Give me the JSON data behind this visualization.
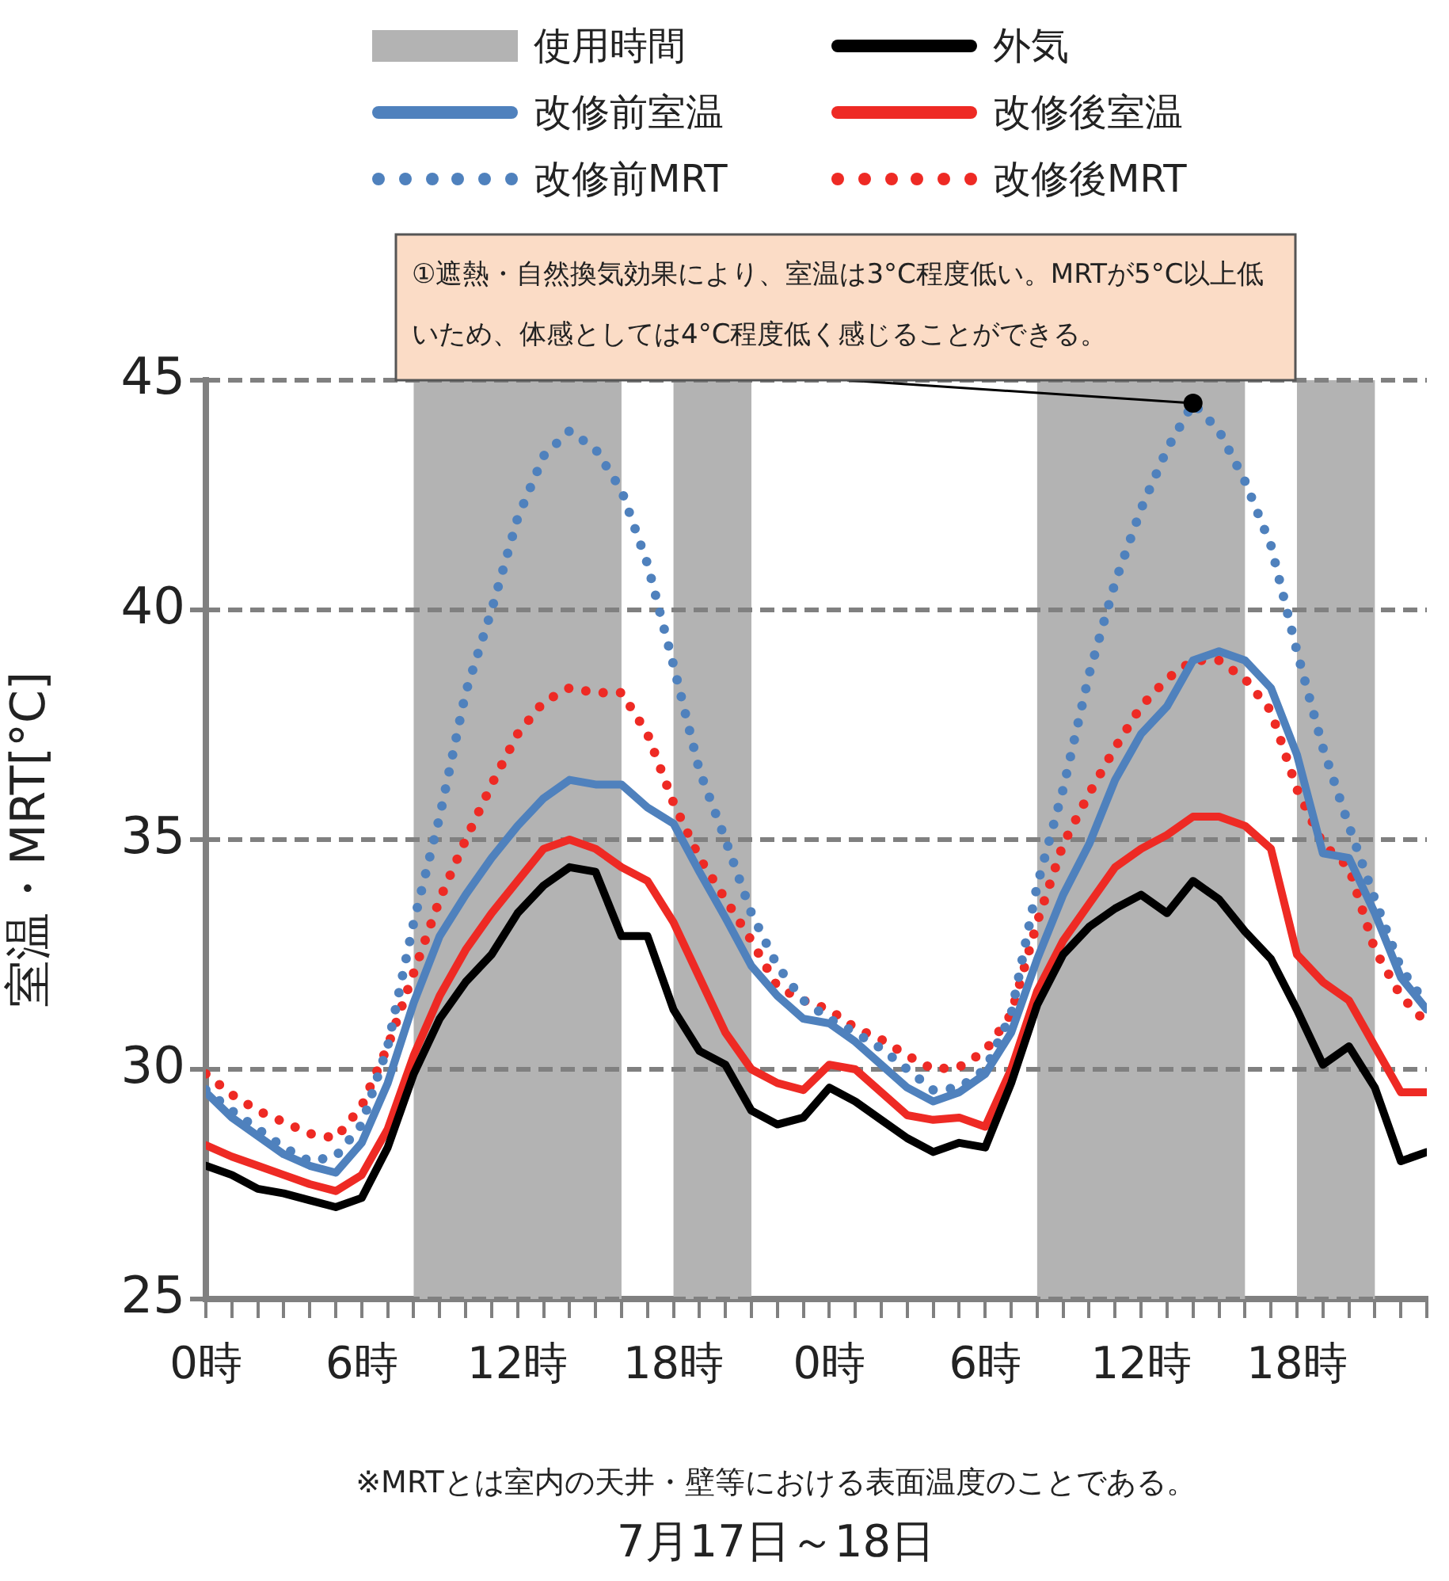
{
  "chart_data": {
    "type": "line",
    "xlabel": "7月17日～18日",
    "ylabel": "室温・MRT[°C]",
    "xlim": [
      "--07-17T00:00",
      "--07-18T23:00"
    ],
    "ylim": [
      25,
      45
    ],
    "yticks": [
      25,
      30,
      35,
      40,
      45
    ],
    "xticks": [
      {
        "value": "--07-17T00:00",
        "label": "0時"
      },
      {
        "value": "--07-17T01:00",
        "label": null
      },
      {
        "value": "--07-17T02:00",
        "label": null
      },
      {
        "value": "--07-17T03:00",
        "label": null
      },
      {
        "value": "--07-17T04:00",
        "label": null
      },
      {
        "value": "--07-17T05:00",
        "label": null
      },
      {
        "value": "--07-17T06:00",
        "label": "6時"
      },
      {
        "value": "--07-17T07:00",
        "label": null
      },
      {
        "value": "--07-17T08:00",
        "label": null
      },
      {
        "value": "--07-17T09:00",
        "label": null
      },
      {
        "value": "--07-17T10:00",
        "label": null
      },
      {
        "value": "--07-17T11:00",
        "label": null
      },
      {
        "value": "--07-17T12:00",
        "label": "12時"
      },
      {
        "value": "--07-17T13:00",
        "label": null
      },
      {
        "value": "--07-17T14:00",
        "label": null
      },
      {
        "value": "--07-17T15:00",
        "label": null
      },
      {
        "value": "--07-17T16:00",
        "label": null
      },
      {
        "value": "--07-17T17:00",
        "label": null
      },
      {
        "value": "--07-17T18:00",
        "label": "18時"
      },
      {
        "value": "--07-17T19:00",
        "label": null
      },
      {
        "value": "--07-17T20:00",
        "label": null
      },
      {
        "value": "--07-17T21:00",
        "label": null
      },
      {
        "value": "--07-17T22:00",
        "label": null
      },
      {
        "value": "--07-17T23:00",
        "label": null
      },
      {
        "value": "--07-18T00:00",
        "label": "0時"
      },
      {
        "value": "--07-18T01:00",
        "label": null
      },
      {
        "value": "--07-18T02:00",
        "label": null
      },
      {
        "value": "--07-18T03:00",
        "label": null
      },
      {
        "value": "--07-18T04:00",
        "label": null
      },
      {
        "value": "--07-18T05:00",
        "label": null
      },
      {
        "value": "--07-18T06:00",
        "label": "6時"
      },
      {
        "value": "--07-18T07:00",
        "label": null
      },
      {
        "value": "--07-18T08:00",
        "label": null
      },
      {
        "value": "--07-18T09:00",
        "label": null
      },
      {
        "value": "--07-18T10:00",
        "label": null
      },
      {
        "value": "--07-18T11:00",
        "label": null
      },
      {
        "value": "--07-18T12:00",
        "label": "12時"
      },
      {
        "value": "--07-18T13:00",
        "label": null
      },
      {
        "value": "--07-18T14:00",
        "label": null
      },
      {
        "value": "--07-18T15:00",
        "label": null
      },
      {
        "value": "--07-18T16:00",
        "label": null
      },
      {
        "value": "--07-18T17:00",
        "label": null
      },
      {
        "value": "--07-18T18:00",
        "label": "18時"
      },
      {
        "value": "--07-18T19:00",
        "label": null
      },
      {
        "value": "--07-18T20:00",
        "label": null
      },
      {
        "value": "--07-18T21:00",
        "label": null
      },
      {
        "value": "--07-18T22:00",
        "label": null
      },
      {
        "value": "--07-18T23:00",
        "label": null
      }
    ],
    "x": [
      "--07-17T00:00",
      "--07-17T01:00",
      "--07-17T02:00",
      "--07-17T03:00",
      "--07-17T04:00",
      "--07-17T05:00",
      "--07-17T06:00",
      "--07-17T07:00",
      "--07-17T08:00",
      "--07-17T09:00",
      "--07-17T10:00",
      "--07-17T11:00",
      "--07-17T12:00",
      "--07-17T13:00",
      "--07-17T14:00",
      "--07-17T15:00",
      "--07-17T16:00",
      "--07-17T17:00",
      "--07-17T18:00",
      "--07-17T19:00",
      "--07-17T20:00",
      "--07-17T21:00",
      "--07-17T22:00",
      "--07-17T23:00",
      "--07-18T00:00",
      "--07-18T01:00",
      "--07-18T02:00",
      "--07-18T03:00",
      "--07-18T04:00",
      "--07-18T05:00",
      "--07-18T06:00",
      "--07-18T07:00",
      "--07-18T08:00",
      "--07-18T09:00",
      "--07-18T10:00",
      "--07-18T11:00",
      "--07-18T12:00",
      "--07-18T13:00",
      "--07-18T14:00",
      "--07-18T15:00",
      "--07-18T16:00",
      "--07-18T17:00",
      "--07-18T18:00",
      "--07-18T19:00",
      "--07-18T20:00",
      "--07-18T21:00",
      "--07-18T22:00",
      "--07-18T23:00"
    ],
    "grid": "y",
    "legend": "top",
    "line_style": "solid",
    "bands": [
      {
        "axis": "x",
        "from": "--07-17T08:00",
        "to": "--07-17T16:00",
        "label": "使用時間",
        "color": "#b3b3b3"
      },
      {
        "axis": "x",
        "from": "--07-17T18:00",
        "to": "--07-17T21:00",
        "color": "#b3b3b3"
      },
      {
        "axis": "x",
        "from": "--07-18T08:00",
        "to": "--07-18T16:00",
        "color": "#b3b3b3"
      },
      {
        "axis": "x",
        "from": "--07-18T18:00",
        "to": "--07-18T21:00",
        "color": "#b3b3b3"
      }
    ],
    "series": [
      {
        "name": "改修前室温",
        "color": "#4f81bd",
        "values": [
          29.5,
          28.95,
          28.55,
          28.15,
          27.9,
          27.75,
          28.4,
          29.7,
          31.45,
          32.9,
          33.8,
          34.6,
          35.3,
          35.9,
          36.3,
          36.2,
          36.2,
          35.7,
          35.35,
          34.3,
          33.3,
          32.25,
          31.6,
          31.1,
          31.0,
          30.6,
          30.1,
          29.6,
          29.3,
          29.5,
          29.9,
          30.8,
          32.4,
          33.8,
          34.9,
          36.3,
          37.3,
          37.9,
          38.9,
          39.1,
          38.9,
          38.3,
          36.85,
          34.7,
          34.6,
          33.4,
          32.0,
          31.3
        ]
      },
      {
        "name": "改修前MRT",
        "color": "#4f81bd",
        "line_style": "dotted",
        "values": [
          29.55,
          29.1,
          28.7,
          28.3,
          28.0,
          28.1,
          28.8,
          30.5,
          33.2,
          35.5,
          38.2,
          40.0,
          42.0,
          43.35,
          43.9,
          43.5,
          42.6,
          41.0,
          38.8,
          36.5,
          35.0,
          33.4,
          32.25,
          31.5,
          31.1,
          30.8,
          30.45,
          30.0,
          29.55,
          29.6,
          30.0,
          31.2,
          34.0,
          36.1,
          38.6,
          40.6,
          42.2,
          43.5,
          44.5,
          43.9,
          42.8,
          41.4,
          39.1,
          37.0,
          35.3,
          33.7,
          32.2,
          31.4
        ]
      },
      {
        "name": "外気",
        "color": "#000000",
        "values": [
          27.9,
          27.7,
          27.4,
          27.3,
          27.15,
          27.0,
          27.2,
          28.3,
          29.9,
          31.1,
          31.9,
          32.5,
          33.4,
          34.0,
          34.4,
          34.3,
          32.9,
          32.9,
          31.3,
          30.4,
          30.1,
          29.1,
          28.8,
          28.95,
          29.6,
          29.3,
          28.9,
          28.5,
          28.2,
          28.4,
          28.3,
          29.7,
          31.4,
          32.5,
          33.1,
          33.5,
          33.8,
          33.4,
          34.1,
          33.7,
          33.0,
          32.4,
          31.3,
          30.1,
          30.5,
          29.6,
          28.0,
          28.2
        ]
      },
      {
        "name": "改修後室温",
        "color": "#ee2a24",
        "values": [
          28.35,
          28.1,
          27.9,
          27.7,
          27.5,
          27.35,
          27.7,
          28.7,
          30.3,
          31.6,
          32.6,
          33.4,
          34.1,
          34.8,
          35.0,
          34.8,
          34.4,
          34.1,
          33.2,
          32.0,
          30.8,
          30.0,
          29.7,
          29.55,
          30.1,
          30.0,
          29.5,
          29.0,
          28.9,
          28.95,
          28.75,
          30.0,
          31.7,
          32.8,
          33.6,
          34.4,
          34.8,
          35.1,
          35.5,
          35.5,
          35.3,
          34.8,
          32.5,
          31.9,
          31.5,
          30.5,
          29.5,
          29.5
        ]
      },
      {
        "name": "改修後MRT",
        "color": "#ee2a24",
        "line_style": "dotted",
        "values": [
          29.9,
          29.45,
          29.1,
          28.85,
          28.6,
          28.5,
          29.2,
          30.5,
          32.1,
          33.7,
          35.0,
          36.2,
          37.3,
          38.0,
          38.3,
          38.2,
          38.2,
          37.3,
          35.8,
          34.6,
          33.7,
          32.8,
          31.8,
          31.5,
          31.3,
          30.9,
          30.65,
          30.3,
          30.0,
          30.05,
          30.4,
          31.2,
          33.2,
          34.9,
          36.0,
          37.0,
          37.9,
          38.5,
          38.9,
          38.9,
          38.5,
          37.8,
          36.1,
          34.9,
          34.4,
          32.6,
          31.6,
          31.0
        ]
      }
    ],
    "annotations": [
      {
        "text": "①遮熱・自然換気効果により、室温は3°C程度低い。MRTが5°C以上低いため、体感としては4°C程度低く感じることができる。",
        "x": "--07-18T14:00",
        "y": 44.5
      },
      "※MRTとは室内の天井・壁等における表面温度のことである。"
    ]
  }
}
